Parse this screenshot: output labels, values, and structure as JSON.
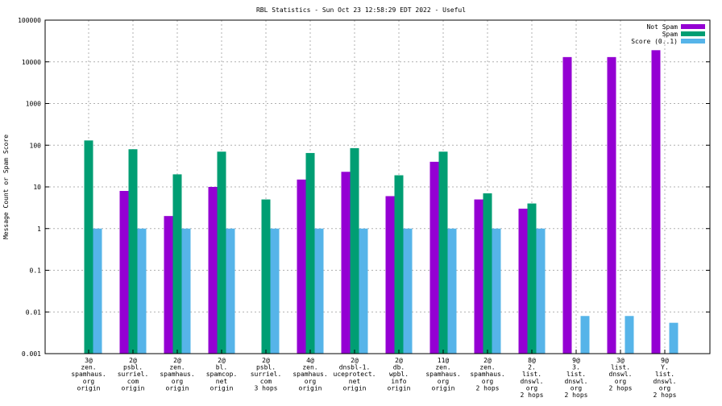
{
  "chart_data": {
    "type": "bar",
    "title": "RBL Statistics - Sun Oct 23 12:58:29 EDT 2022 - Useful",
    "ylabel": "Message Count or Spam Score",
    "xlabel": "",
    "yscale": "log",
    "ylim": [
      0.001,
      100000
    ],
    "yticks": [
      "0.001",
      "0.01",
      "0.1",
      "1",
      "10",
      "100",
      "1000",
      "10000",
      "100000"
    ],
    "grid": true,
    "legend_position": "top-right",
    "categories": [
      [
        "3@",
        "zen.",
        "spamhaus.",
        "org",
        "origin"
      ],
      [
        "2@",
        "psbl.",
        "surriel.",
        "com",
        "origin"
      ],
      [
        "2@",
        "zen.",
        "spamhaus.",
        "org",
        "origin"
      ],
      [
        "2@",
        "bl.",
        "spamcop.",
        "net",
        "origin"
      ],
      [
        "2@",
        "psbl.",
        "surriel.",
        "com",
        "3 hops"
      ],
      [
        "4@",
        "zen.",
        "spamhaus.",
        "org",
        "origin"
      ],
      [
        "2@",
        "dnsbl-1.",
        "uceprotect.",
        "net",
        "origin"
      ],
      [
        "2@",
        "db.",
        "wpbl.",
        "info",
        "origin"
      ],
      [
        "11@",
        "zen.",
        "spamhaus.",
        "org",
        "origin"
      ],
      [
        "2@",
        "zen.",
        "spamhaus.",
        "org",
        "2 hops"
      ],
      [
        "8@",
        "2.",
        "list.",
        "dnswl.",
        "org",
        "2 hops"
      ],
      [
        "9@",
        "3.",
        "list.",
        "dnswl.",
        "org",
        "2 hops"
      ],
      [
        "3@",
        "list.",
        "dnswl.",
        "org",
        "2 hops"
      ],
      [
        "9@",
        "Y.",
        "list.",
        "dnswl.",
        "org",
        "2 hops"
      ]
    ],
    "series": [
      {
        "name": "Not Spam",
        "color": "#9400d3",
        "values": [
          null,
          8,
          2,
          10,
          null,
          15,
          23,
          6,
          40,
          5,
          3,
          13000,
          13000,
          19000
        ]
      },
      {
        "name": "Spam",
        "color": "#009e73",
        "values": [
          130,
          80,
          20,
          70,
          5,
          65,
          85,
          19,
          70,
          7,
          4,
          null,
          null,
          null
        ]
      },
      {
        "name": "Score (0..1)",
        "color": "#56b4e9",
        "values": [
          1,
          1,
          1,
          1,
          1,
          1,
          1,
          1,
          1,
          1,
          1,
          0.008,
          0.008,
          0.0055
        ]
      }
    ]
  }
}
